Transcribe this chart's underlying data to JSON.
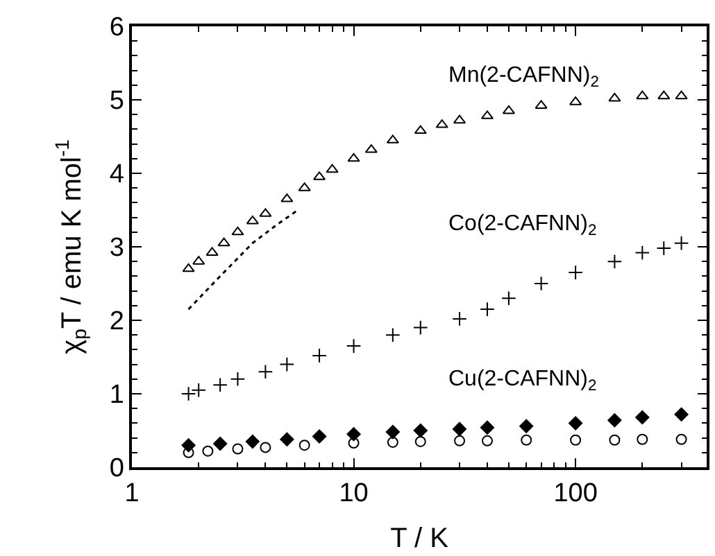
{
  "chart_data": {
    "type": "scatter",
    "xlabel": "T / K",
    "ylabel": "χ$_{p}$T / emu K mol$^{-1}$",
    "log": "x",
    "xlim": [
      1,
      390
    ],
    "xticks": [
      1,
      10,
      100
    ],
    "ylim": [
      0,
      6
    ],
    "yticks": [
      0,
      1,
      2,
      3,
      4,
      5,
      6
    ],
    "series": [
      {
        "color": "#000000",
        "marker": "triangle",
        "x": [
          1.8,
          2,
          2.3,
          2.6,
          3,
          3.5,
          4,
          5,
          6,
          7,
          8,
          10,
          12,
          15,
          20,
          25,
          30,
          40,
          50,
          70,
          100,
          150,
          200,
          250,
          300
        ],
        "values": [
          2.7,
          2.8,
          2.92,
          3.05,
          3.2,
          3.35,
          3.45,
          3.65,
          3.8,
          3.95,
          4.05,
          4.2,
          4.32,
          4.45,
          4.58,
          4.66,
          4.72,
          4.78,
          4.85,
          4.92,
          4.97,
          5.02,
          5.05,
          5.05,
          5.05
        ]
      },
      {
        "color": "#000000",
        "marker": "cross",
        "x": [
          1.8,
          2,
          2.5,
          3,
          4,
          5,
          7,
          10,
          15,
          20,
          30,
          40,
          50,
          70,
          100,
          150,
          200,
          250,
          300
        ],
        "values": [
          1.0,
          1.05,
          1.12,
          1.2,
          1.3,
          1.4,
          1.52,
          1.65,
          1.8,
          1.9,
          2.02,
          2.15,
          2.3,
          2.5,
          2.65,
          2.8,
          2.92,
          2.98,
          3.05
        ]
      },
      {
        "color": "#000000",
        "marker": "diamond",
        "x": [
          1.8,
          2.5,
          3.5,
          5,
          7,
          10,
          15,
          20,
          30,
          40,
          60,
          100,
          150,
          200,
          300
        ],
        "values": [
          0.3,
          0.32,
          0.35,
          0.38,
          0.42,
          0.45,
          0.48,
          0.5,
          0.52,
          0.54,
          0.56,
          0.6,
          0.64,
          0.68,
          0.72
        ]
      },
      {
        "color": "#000000",
        "marker": "circle",
        "x": [
          1.8,
          2.2,
          3,
          4,
          6,
          10,
          15,
          20,
          30,
          40,
          60,
          100,
          150,
          200,
          300
        ],
        "values": [
          0.2,
          0.22,
          0.25,
          0.27,
          0.3,
          0.33,
          0.34,
          0.35,
          0.36,
          0.36,
          0.37,
          0.37,
          0.37,
          0.38,
          0.38
        ]
      },
      {
        "type": "line",
        "line_style": "dotted",
        "color": "#000000",
        "marker": "none",
        "x": [
          1.8,
          2.5,
          3.5,
          4.5,
          5.6
        ],
        "values": [
          2.15,
          2.6,
          3.05,
          3.3,
          3.5
        ]
      }
    ],
    "annotations": [
      "Mn(2-CAFNN)$_{2}$",
      "Co(2-CAFNN)$_{2}$",
      "Cu(2-CAFNN)$_{2}$"
    ]
  }
}
